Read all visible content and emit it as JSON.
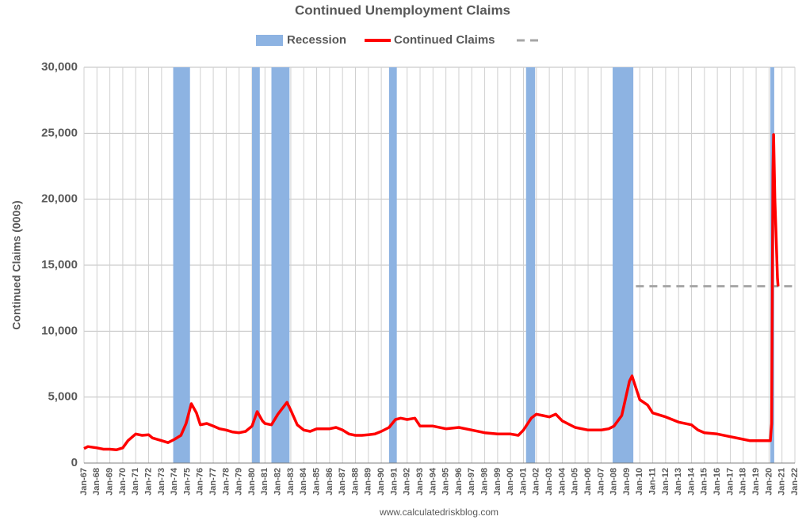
{
  "chart_data": {
    "type": "line",
    "title": "Continued Unemployment Claims",
    "y_label": "Continued Claims (000s)",
    "source": "www.calculatedriskblog.com",
    "xlim": [
      1967,
      2022
    ],
    "xticks": [
      {
        "value": 1967,
        "label": "Jan-67"
      },
      {
        "value": 1968,
        "label": "Jan-68"
      },
      {
        "value": 1969,
        "label": "Jan-69"
      },
      {
        "value": 1970,
        "label": "Jan-70"
      },
      {
        "value": 1971,
        "label": "Jan-71"
      },
      {
        "value": 1972,
        "label": "Jan-72"
      },
      {
        "value": 1973,
        "label": "Jan-73"
      },
      {
        "value": 1974,
        "label": "Jan-74"
      },
      {
        "value": 1975,
        "label": "Jan-75"
      },
      {
        "value": 1976,
        "label": "Jan-76"
      },
      {
        "value": 1977,
        "label": "Jan-77"
      },
      {
        "value": 1978,
        "label": "Jan-78"
      },
      {
        "value": 1979,
        "label": "Jan-79"
      },
      {
        "value": 1980,
        "label": "Jan-80"
      },
      {
        "value": 1981,
        "label": "Jan-81"
      },
      {
        "value": 1982,
        "label": "Jan-82"
      },
      {
        "value": 1983,
        "label": "Jan-83"
      },
      {
        "value": 1984,
        "label": "Jan-84"
      },
      {
        "value": 1985,
        "label": "Jan-85"
      },
      {
        "value": 1986,
        "label": "Jan-86"
      },
      {
        "value": 1987,
        "label": "Jan-87"
      },
      {
        "value": 1988,
        "label": "Jan-88"
      },
      {
        "value": 1989,
        "label": "Jan-89"
      },
      {
        "value": 1990,
        "label": "Jan-90"
      },
      {
        "value": 1991,
        "label": "Jan-91"
      },
      {
        "value": 1992,
        "label": "Jan-92"
      },
      {
        "value": 1993,
        "label": "Jan-93"
      },
      {
        "value": 1994,
        "label": "Jan-94"
      },
      {
        "value": 1995,
        "label": "Jan-95"
      },
      {
        "value": 1996,
        "label": "Jan-96"
      },
      {
        "value": 1997,
        "label": "Jan-97"
      },
      {
        "value": 1998,
        "label": "Jan-98"
      },
      {
        "value": 1999,
        "label": "Jan-99"
      },
      {
        "value": 2000,
        "label": "Jan-00"
      },
      {
        "value": 2001,
        "label": "Jan-01"
      },
      {
        "value": 2002,
        "label": "Jan-02"
      },
      {
        "value": 2003,
        "label": "Jan-03"
      },
      {
        "value": 2004,
        "label": "Jan-04"
      },
      {
        "value": 2005,
        "label": "Jan-05"
      },
      {
        "value": 2006,
        "label": "Jan-06"
      },
      {
        "value": 2007,
        "label": "Jan-07"
      },
      {
        "value": 2008,
        "label": "Jan-08"
      },
      {
        "value": 2009,
        "label": "Jan-09"
      },
      {
        "value": 2010,
        "label": "Jan-10"
      },
      {
        "value": 2011,
        "label": "Jan-11"
      },
      {
        "value": 2012,
        "label": "Jan-12"
      },
      {
        "value": 2013,
        "label": "Jan-13"
      },
      {
        "value": 2014,
        "label": "Jan-14"
      },
      {
        "value": 2015,
        "label": "Jan-15"
      },
      {
        "value": 2016,
        "label": "Jan-16"
      },
      {
        "value": 2017,
        "label": "Jan-17"
      },
      {
        "value": 2018,
        "label": "Jan-18"
      },
      {
        "value": 2019,
        "label": "Jan-19"
      },
      {
        "value": 2020,
        "label": "Jan-20"
      },
      {
        "value": 2021,
        "label": "Jan-21"
      },
      {
        "value": 2022,
        "label": "Jan-22"
      }
    ],
    "ylim": [
      0,
      30000
    ],
    "yticks": [
      0,
      {
        "value": 5000,
        "label": "5,000"
      },
      {
        "value": 10000,
        "label": "10,000"
      },
      {
        "value": 15000,
        "label": "15,000"
      },
      {
        "value": 20000,
        "label": "20,000"
      },
      {
        "value": 25000,
        "label": "25,000"
      },
      {
        "value": 30000,
        "label": "30,000"
      }
    ],
    "grid": true,
    "recessions": {
      "name": "Recession",
      "color": "#8db3e2",
      "ranges": [
        [
          1973.9,
          1975.2
        ],
        [
          1980.0,
          1980.6
        ],
        [
          1981.5,
          1982.9
        ],
        [
          1990.6,
          1991.2
        ],
        [
          2001.2,
          2001.9
        ],
        [
          2007.9,
          2009.5
        ],
        [
          2020.1,
          2020.4
        ]
      ]
    },
    "reference_line": {
      "value": 13400,
      "x": [
        2009.7,
        2022
      ],
      "color": "#a6a6a6"
    },
    "series": [
      {
        "name": "Continued Claims",
        "color": "#ff0000",
        "x": [
          1967.0,
          1967.3,
          1968.0,
          1968.5,
          1969.0,
          1969.5,
          1970.0,
          1970.4,
          1971.0,
          1971.5,
          1972.0,
          1972.3,
          1973.0,
          1973.5,
          1974.0,
          1974.5,
          1974.9,
          1975.3,
          1975.7,
          1976.0,
          1976.5,
          1977.0,
          1977.5,
          1978.0,
          1978.5,
          1979.0,
          1979.5,
          1980.0,
          1980.4,
          1980.8,
          1981.0,
          1981.5,
          1982.0,
          1982.7,
          1983.0,
          1983.5,
          1984.0,
          1984.5,
          1985.0,
          1986.0,
          1986.5,
          1987.0,
          1987.5,
          1988.0,
          1988.5,
          1989.0,
          1989.5,
          1990.0,
          1990.6,
          1991.1,
          1991.5,
          1992.0,
          1992.6,
          1993.0,
          1994.0,
          1995.0,
          1996.0,
          1997.0,
          1998.0,
          1999.0,
          2000.0,
          2000.6,
          2001.0,
          2001.6,
          2002.0,
          2002.5,
          2003.0,
          2003.5,
          2004.0,
          2005.0,
          2006.0,
          2006.5,
          2007.0,
          2007.6,
          2008.0,
          2008.6,
          2009.2,
          2009.4,
          2009.8,
          2010.0,
          2010.6,
          2011.0,
          2012.0,
          2012.5,
          2013.0,
          2014.0,
          2014.5,
          2015.0,
          2016.0,
          2017.0,
          2018.0,
          2018.5,
          2019.0,
          2020.1,
          2020.2,
          2020.3,
          2020.35,
          2020.45,
          2020.55,
          2020.65,
          2020.7
        ],
        "values": [
          1100,
          1250,
          1150,
          1050,
          1050,
          1000,
          1150,
          1700,
          2200,
          2100,
          2150,
          1900,
          1700,
          1550,
          1800,
          2100,
          3000,
          4500,
          3800,
          2900,
          3000,
          2800,
          2600,
          2500,
          2350,
          2300,
          2400,
          2800,
          3900,
          3200,
          3000,
          2900,
          3700,
          4600,
          4000,
          2900,
          2500,
          2400,
          2600,
          2600,
          2700,
          2500,
          2200,
          2100,
          2100,
          2150,
          2200,
          2400,
          2700,
          3300,
          3400,
          3300,
          3400,
          2800,
          2800,
          2600,
          2700,
          2500,
          2300,
          2200,
          2200,
          2100,
          2500,
          3400,
          3700,
          3600,
          3500,
          3700,
          3200,
          2700,
          2500,
          2500,
          2500,
          2600,
          2800,
          3600,
          6200,
          6600,
          5400,
          4800,
          4400,
          3800,
          3500,
          3300,
          3100,
          2900,
          2500,
          2300,
          2200,
          2000,
          1800,
          1700,
          1700,
          1700,
          3000,
          22000,
          24900,
          20000,
          17000,
          14000,
          13400
        ]
      }
    ]
  }
}
